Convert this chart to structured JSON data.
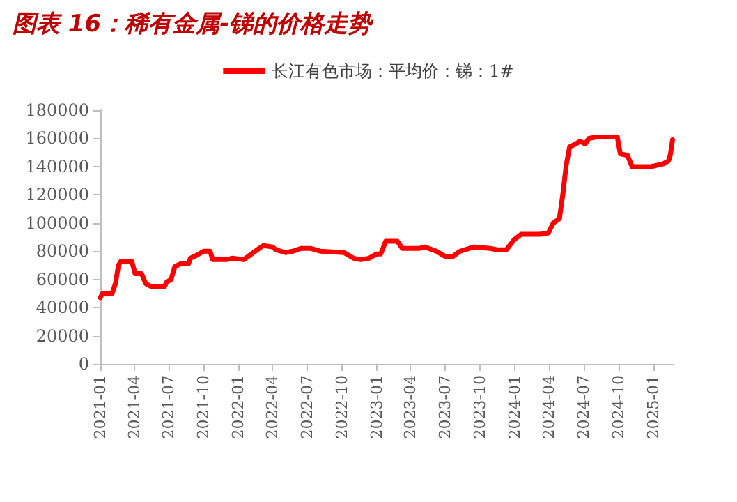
{
  "chart_data": {
    "type": "line",
    "title": "图表 16：稀有金属-锑的价格走势",
    "x": [
      "2021-01-01",
      "2021-01-07",
      "2021-02-01",
      "2021-02-10",
      "2021-02-18",
      "2021-02-25",
      "2021-03-25",
      "2021-04-03",
      "2021-04-20",
      "2021-05-01",
      "2021-05-15",
      "2021-06-20",
      "2021-06-25",
      "2021-07-07",
      "2021-07-17",
      "2021-08-01",
      "2021-08-22",
      "2021-08-27",
      "2021-09-12",
      "2021-10-01",
      "2021-10-18",
      "2021-10-25",
      "2021-12-01",
      "2021-12-15",
      "2022-01-15",
      "2022-02-25",
      "2022-03-08",
      "2022-04-01",
      "2022-04-10",
      "2022-05-05",
      "2022-05-25",
      "2022-06-15",
      "2022-07-10",
      "2022-08-05",
      "2022-10-07",
      "2022-11-01",
      "2022-11-20",
      "2022-12-12",
      "2023-01-01",
      "2023-01-12",
      "2023-01-25",
      "2023-02-25",
      "2023-03-10",
      "2023-04-25",
      "2023-05-08",
      "2023-06-08",
      "2023-07-03",
      "2023-07-20",
      "2023-08-10",
      "2023-09-15",
      "2023-10-28",
      "2023-11-15",
      "2023-12-10",
      "2023-12-30",
      "2024-01-18",
      "2024-03-08",
      "2024-03-30",
      "2024-04-12",
      "2024-04-28",
      "2024-05-07",
      "2024-05-16",
      "2024-05-25",
      "2024-06-10",
      "2024-06-22",
      "2024-07-05",
      "2024-07-15",
      "2024-08-05",
      "2024-09-28",
      "2024-10-06",
      "2024-10-25",
      "2024-11-06",
      "2024-12-27",
      "2025-01-28",
      "2025-02-10",
      "2025-02-15",
      "2025-02-21"
    ],
    "series": [
      {
        "name": "长江有色市场：平均价：锑：1#",
        "color": "#ff0000",
        "values": [
          47000,
          50000,
          50000,
          57000,
          70000,
          73000,
          73000,
          64000,
          64000,
          57000,
          55000,
          55000,
          58000,
          60000,
          69000,
          71000,
          71000,
          75000,
          77000,
          80000,
          80000,
          74000,
          74000,
          75000,
          74000,
          82000,
          84000,
          83000,
          81000,
          79000,
          80000,
          82000,
          82000,
          80000,
          79000,
          75000,
          74000,
          75000,
          78000,
          78000,
          87000,
          87000,
          82000,
          82000,
          83000,
          80000,
          76000,
          76000,
          80000,
          83000,
          82000,
          81000,
          81000,
          88000,
          92000,
          92000,
          93000,
          100000,
          103000,
          120000,
          141000,
          154000,
          156000,
          158000,
          156000,
          160000,
          161000,
          161000,
          149000,
          148000,
          140000,
          140000,
          142000,
          144000,
          148000,
          159000
        ]
      }
    ],
    "xlim": [
      "2021-01-01",
      "2025-02-22"
    ],
    "xticks": [
      "2021-01",
      "2021-04",
      "2021-07",
      "2021-10",
      "2022-01",
      "2022-04",
      "2022-07",
      "2022-10",
      "2023-01",
      "2023-04",
      "2023-07",
      "2023-10",
      "2024-01",
      "2024-04",
      "2024-07",
      "2024-10",
      "2025-01"
    ],
    "ylim": [
      0,
      180000
    ],
    "yticks": [
      0,
      20000,
      40000,
      60000,
      80000,
      100000,
      120000,
      140000,
      160000,
      180000
    ],
    "grid": false,
    "legend": "top",
    "marker": "none",
    "line_style": "solid"
  }
}
